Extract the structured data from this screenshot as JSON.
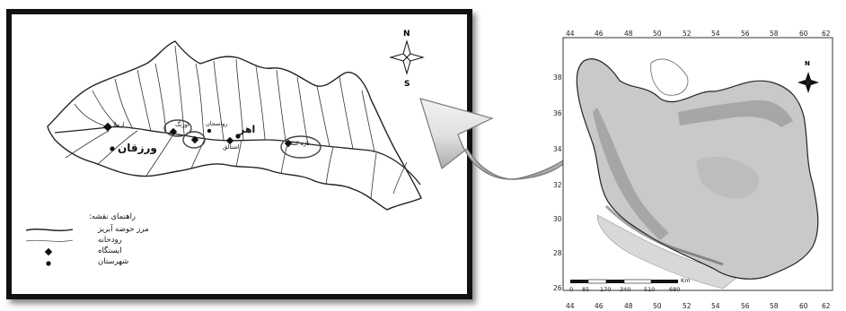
{
  "left_map": {
    "compass": {
      "north": "N",
      "south": "S"
    },
    "labels": {
      "ahar": "اهر",
      "varzeqan": "ورزقان",
      "station_1": "اورنگ",
      "station_2": "رواسجان",
      "station_3": "اشتالق",
      "station_4": "تازه کند",
      "station_5": "ارنیلا"
    },
    "legend": {
      "title": "راهنمای نقشه:",
      "basin_boundary": "مرز حوضه آبریز",
      "river": "رودخانه",
      "station": "ایستگاه",
      "city": "شهرستان"
    }
  },
  "right_map": {
    "compass": {
      "north": "N"
    },
    "top_ticks": [
      "44",
      "46",
      "48",
      "50",
      "52",
      "54",
      "56",
      "58",
      "60",
      "62"
    ],
    "bottom_ticks": [
      "44",
      "46",
      "48",
      "50",
      "52",
      "54",
      "56",
      "58",
      "60",
      "62"
    ],
    "left_ticks": [
      "38",
      "36",
      "34",
      "32",
      "30",
      "28",
      "26"
    ],
    "scale_bar": {
      "labels": [
        "0",
        "85",
        "170",
        "340",
        "510",
        "680"
      ],
      "unit": "Km"
    }
  },
  "colors": {
    "frame": "#111111",
    "arrow_light": "#f4f4f4",
    "arrow_dark": "#9a9a9a"
  }
}
